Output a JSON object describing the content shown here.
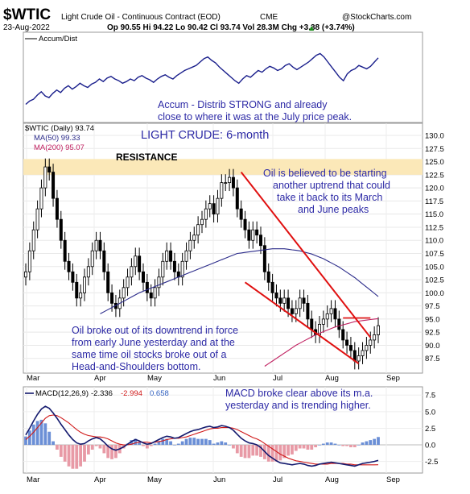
{
  "header": {
    "symbol": "$WTIC",
    "name": "Light Crude Oil - Continuous Contract (EOD)",
    "exchange": "CME",
    "brand": "@StockCharts.com",
    "date": "23-Aug-2022",
    "ohlc": "Op 90.55  Hi 94.22  Lo 90.42  Cl 93.74  Vol 28.3M  Chg +3.38 (+3.74%)",
    "chg_arrow": "▲"
  },
  "chart_data": [
    {
      "type": "line",
      "panel": "accum_dist",
      "legend": "Accum/Dist",
      "annotation": [
        "Accum - Distrib STRONG and already",
        "close to where it was at the July price peak."
      ],
      "values": [
        30,
        34,
        36,
        41,
        45,
        40,
        38,
        43,
        47,
        44,
        49,
        52,
        48,
        51,
        55,
        52,
        50,
        54,
        56,
        60,
        57,
        61,
        63,
        60,
        58,
        55,
        57,
        60,
        58,
        62,
        64,
        61,
        59,
        56,
        60,
        63,
        65,
        62,
        60,
        64,
        67,
        70,
        72,
        74,
        76,
        80,
        84,
        86,
        82,
        79,
        74,
        70,
        66,
        62,
        58,
        55,
        60,
        64,
        62,
        66,
        70,
        68,
        72,
        75,
        73,
        70,
        72,
        76,
        78,
        74,
        71,
        74,
        77,
        80,
        84,
        88,
        90,
        86,
        80,
        74,
        68,
        62,
        58,
        66,
        70,
        72,
        76,
        74,
        72,
        75,
        80,
        85
      ]
    },
    {
      "type": "candlestick",
      "panel": "price",
      "title": "LIGHT CRUDE: 6-month",
      "legend": [
        "$WTIC (Daily) 93.74",
        "MA(50) 99.33",
        "MA(200) 95.07"
      ],
      "ylim": [
        85,
        132
      ],
      "yticks": [
        87.5,
        90.0,
        92.5,
        95.0,
        97.5,
        100.0,
        102.5,
        105.0,
        107.5,
        110.0,
        112.5,
        115.0,
        117.5,
        120.0,
        122.5,
        125.0,
        127.5,
        130.0
      ],
      "x_labels": [
        "Mar",
        "Apr",
        "May",
        "Jun",
        "Jul",
        "Aug",
        "Sep"
      ],
      "resistance_band": [
        122.5,
        125.5
      ],
      "resistance_label": "RESISTANCE",
      "closes": [
        104,
        108,
        112,
        116,
        120,
        124,
        123,
        118,
        114,
        110,
        106,
        104,
        102,
        99,
        100,
        103,
        105,
        108,
        110,
        108,
        104,
        100,
        98,
        97,
        99,
        101,
        103,
        105,
        107,
        104,
        102,
        100,
        99,
        101,
        103,
        106,
        108,
        106,
        104,
        103,
        106,
        108,
        110,
        111,
        113,
        114,
        116,
        117,
        115,
        118,
        121,
        121,
        122,
        120,
        116,
        114,
        112,
        110,
        112,
        111,
        109,
        104,
        102,
        100,
        99,
        98,
        99,
        97,
        96,
        97,
        99,
        98,
        95,
        93,
        92,
        94,
        95,
        96,
        97,
        95,
        93,
        91,
        90,
        89,
        87,
        88,
        89,
        90,
        91,
        92,
        93.74
      ],
      "ma50": [
        96,
        96.4,
        96.8,
        97.2,
        97.6,
        98,
        98.4,
        98.8,
        99.2,
        99.6,
        100,
        100.3,
        100.6,
        100.9,
        101.2,
        101.5,
        101.8,
        102.1,
        102.4,
        102.7,
        103,
        103.3,
        103.6,
        103.9,
        104.2,
        104.5,
        104.8,
        105.1,
        105.4,
        105.7,
        106,
        106.3,
        106.6,
        106.9,
        107.2,
        107.5,
        107.6,
        107.7,
        107.8,
        107.9,
        108,
        108.1,
        108.2,
        108.3,
        108.4,
        108.4,
        108.4,
        108.4,
        108.3,
        108.2,
        108.1,
        108,
        107.8,
        107.6,
        107.4,
        107.1,
        106.8,
        106.5,
        106.1,
        105.7,
        105.3,
        104.9,
        104.4,
        103.9,
        103.4,
        102.9,
        102.3,
        101.7,
        101.1,
        100.5,
        99.9,
        99.3
      ],
      "ma200": [
        86,
        86.5,
        87,
        87.5,
        88,
        88.5,
        89,
        89.5,
        90,
        90.4,
        90.8,
        91.2,
        91.6,
        92,
        92.3,
        92.6,
        92.9,
        93.2,
        93.5,
        93.7,
        93.9,
        94.1,
        94.3,
        94.5,
        94.6,
        94.7,
        94.8,
        94.9,
        95,
        95.07
      ],
      "trend_channel_upper": [
        [
          55,
          123
        ],
        [
          88,
          91.5
        ]
      ],
      "trend_channel_lower": [
        [
          56,
          102
        ],
        [
          85,
          86.5
        ]
      ],
      "ma200_break_line": [
        [
          81,
          95.2
        ],
        [
          88,
          95.2
        ]
      ],
      "annotations": [
        [
          "Oil is believed to be starting",
          "another uptrend that could",
          "take it back to its March",
          "and June peaks"
        ],
        [
          "Oil broke out of its downtrend in force",
          "from early June yesterday and at the",
          "same time oil stocks broke out of a",
          "Head-and-Shoulders bottom."
        ]
      ]
    },
    {
      "type": "line",
      "panel": "macd",
      "legend": [
        "MACD(12,26,9)",
        "-2.336",
        "-2.994",
        "0.658"
      ],
      "ylim": [
        -4.0,
        8.5
      ],
      "yticks": [
        -2.5,
        0.0,
        2.5,
        5.0,
        7.5
      ],
      "x_labels": [
        "Mar",
        "Apr",
        "May",
        "Jun",
        "Jul",
        "Aug",
        "Sep"
      ],
      "annotation": [
        "MACD broke clear above its m.a.",
        "yesterday and is trending higher."
      ],
      "macd": [
        1.5,
        2.5,
        3.6,
        4.6,
        5.4,
        5.8,
        5.5,
        4.8,
        4.0,
        3.1,
        2.3,
        1.5,
        0.8,
        0.3,
        0.1,
        0.2,
        0.6,
        0.9,
        1.1,
        0.9,
        0.4,
        -0.2,
        -0.6,
        -0.8,
        -0.6,
        -0.3,
        0.1,
        0.5,
        0.8,
        0.6,
        0.3,
        0.1,
        0.2,
        0.5,
        0.8,
        1.1,
        1.3,
        1.2,
        1.0,
        1.1,
        1.4,
        1.7,
        2.0,
        2.2,
        2.3,
        2.5,
        2.7,
        2.8,
        2.6,
        2.7,
        2.9,
        2.8,
        2.6,
        2.2,
        1.6,
        1.0,
        0.6,
        0.3,
        0.2,
        0.0,
        -0.4,
        -1.0,
        -1.6,
        -2.0,
        -2.4,
        -2.7,
        -2.8,
        -2.9,
        -3.0,
        -2.9,
        -2.8,
        -2.9,
        -3.1,
        -3.2,
        -3.1,
        -2.9,
        -2.8,
        -2.7,
        -2.6,
        -2.7,
        -2.8,
        -2.9,
        -3.0,
        -3.1,
        -3.2,
        -3.0,
        -2.8,
        -2.7,
        -2.6,
        -2.5,
        -2.336
      ],
      "signal": [
        0.8,
        1.3,
        1.9,
        2.6,
        3.3,
        4.0,
        4.4,
        4.5,
        4.4,
        4.1,
        3.7,
        3.3,
        2.8,
        2.3,
        1.9,
        1.6,
        1.4,
        1.3,
        1.2,
        1.2,
        1.1,
        0.9,
        0.6,
        0.3,
        0.1,
        0.0,
        0.0,
        0.1,
        0.3,
        0.4,
        0.4,
        0.4,
        0.3,
        0.4,
        0.5,
        0.6,
        0.8,
        0.9,
        1.0,
        1.0,
        1.1,
        1.2,
        1.4,
        1.6,
        1.8,
        2.0,
        2.2,
        2.4,
        2.5,
        2.5,
        2.6,
        2.6,
        2.6,
        2.5,
        2.3,
        2.0,
        1.7,
        1.4,
        1.1,
        0.9,
        0.6,
        0.2,
        -0.2,
        -0.6,
        -1.0,
        -1.4,
        -1.7,
        -2.0,
        -2.2,
        -2.4,
        -2.5,
        -2.6,
        -2.7,
        -2.8,
        -2.9,
        -2.9,
        -2.9,
        -2.9,
        -2.8,
        -2.8,
        -2.8,
        -2.8,
        -2.9,
        -2.9,
        -3.0,
        -3.0,
        -3.0,
        -3.0,
        -3.0,
        -3.0,
        -2.994
      ]
    }
  ]
}
